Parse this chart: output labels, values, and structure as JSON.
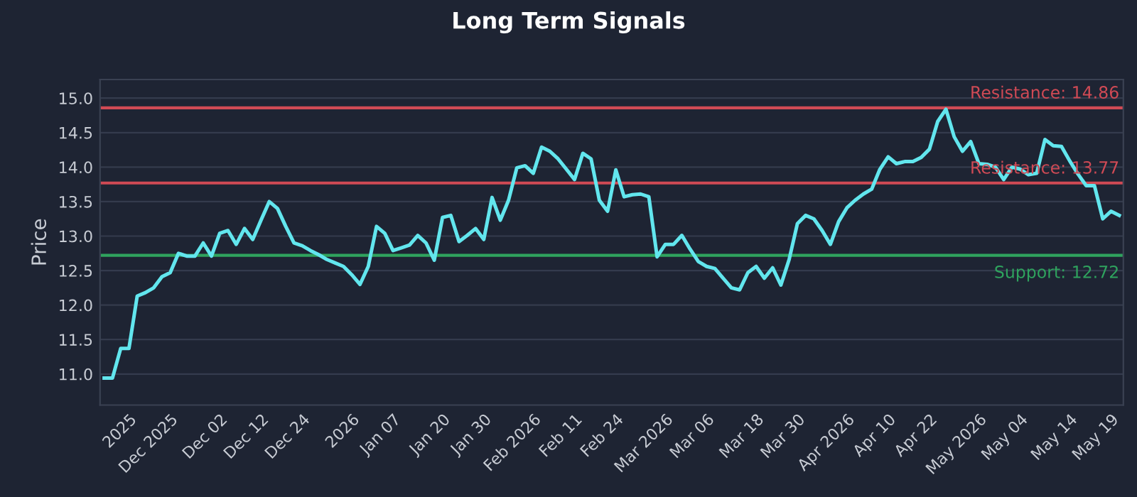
{
  "chart_data": {
    "type": "line",
    "title": "Long Term Signals",
    "ylabel": "Price",
    "categories": [
      null,
      null,
      null,
      "2025",
      null,
      null,
      null,
      null,
      "Dec 2025",
      null,
      null,
      null,
      null,
      null,
      "Dec 02",
      null,
      null,
      null,
      null,
      "Dec 12",
      null,
      null,
      null,
      null,
      "Dec 24",
      null,
      null,
      null,
      null,
      null,
      "2026",
      null,
      null,
      null,
      null,
      "Jan 07",
      null,
      null,
      null,
      null,
      null,
      "Jan 20",
      null,
      null,
      null,
      null,
      "Jan 30",
      null,
      null,
      null,
      null,
      null,
      "Feb 2026",
      null,
      null,
      null,
      null,
      "Feb 11",
      null,
      null,
      null,
      null,
      "Feb 24",
      null,
      null,
      null,
      null,
      null,
      "Mar 2026",
      null,
      null,
      null,
      null,
      "Mar 06",
      null,
      null,
      null,
      null,
      null,
      "Mar 18",
      null,
      null,
      null,
      null,
      "Mar 30",
      null,
      null,
      null,
      null,
      null,
      "Apr 2026",
      null,
      null,
      null,
      null,
      "Apr 10",
      null,
      null,
      null,
      null,
      "Apr 22",
      null,
      null,
      null,
      null,
      null,
      "May 2026",
      null,
      null,
      null,
      null,
      "May 04",
      null,
      null,
      null,
      null,
      null,
      "May 14",
      null,
      null,
      null,
      null,
      "May 19",
      null
    ],
    "series": [
      {
        "color": "#62e6ee",
        "values": [
          10.94,
          10.94,
          11.37,
          11.37,
          12.13,
          12.18,
          12.25,
          12.41,
          12.47,
          12.75,
          12.71,
          12.71,
          12.9,
          12.71,
          13.04,
          13.08,
          12.88,
          13.11,
          12.95,
          13.23,
          13.5,
          13.4,
          13.14,
          12.9,
          12.86,
          12.79,
          12.73,
          12.66,
          12.61,
          12.56,
          12.44,
          12.3,
          12.56,
          13.14,
          13.04,
          12.79,
          12.83,
          12.87,
          13.01,
          12.9,
          12.65,
          13.27,
          13.3,
          12.92,
          13.01,
          13.11,
          12.95,
          13.56,
          13.23,
          13.52,
          13.99,
          14.02,
          13.91,
          14.29,
          14.23,
          14.12,
          13.97,
          13.82,
          14.2,
          14.12,
          13.52,
          13.36,
          13.96,
          13.57,
          13.6,
          13.61,
          13.57,
          12.7,
          12.88,
          12.88,
          13.01,
          12.81,
          12.63,
          12.56,
          12.53,
          12.39,
          12.25,
          12.22,
          12.47,
          12.56,
          12.39,
          12.54,
          12.29,
          12.66,
          13.18,
          13.3,
          13.25,
          13.08,
          12.88,
          13.21,
          13.41,
          13.52,
          13.61,
          13.68,
          13.97,
          14.15,
          14.05,
          14.08,
          14.08,
          14.14,
          14.26,
          14.66,
          14.84,
          14.44,
          14.23,
          14.37,
          14.05,
          14.04,
          14.0,
          13.82,
          14.0,
          13.97,
          13.89,
          13.91,
          14.4,
          14.31,
          14.3,
          14.09,
          13.9,
          13.73,
          13.73,
          13.25,
          13.36,
          13.3
        ]
      }
    ],
    "ylim": [
      10.55,
      15.27
    ],
    "yticks": [
      {
        "value": 11,
        "label": "11.0"
      },
      {
        "value": 11.5,
        "label": "11.5"
      },
      {
        "value": 12,
        "label": "12.0"
      },
      {
        "value": 12.5,
        "label": "12.5"
      },
      {
        "value": 13,
        "label": "13.0"
      },
      {
        "value": 13.5,
        "label": "13.5"
      },
      {
        "value": 14,
        "label": "14.0"
      },
      {
        "value": 14.5,
        "label": "14.5"
      },
      {
        "value": 15,
        "label": "15.0"
      }
    ],
    "grid": "y",
    "legend": false,
    "marker": "none",
    "line_style": "solid",
    "ref_lines": [
      {
        "axis": "y",
        "value": 14.86,
        "label": "Resistance: 14.86",
        "color": "#d04a55"
      },
      {
        "axis": "y",
        "value": 13.77,
        "label": "Resistance: 13.77",
        "color": "#d04a55"
      },
      {
        "axis": "y",
        "value": 12.72,
        "label": "Support: 12.72",
        "color": "#2fa35e"
      }
    ]
  }
}
